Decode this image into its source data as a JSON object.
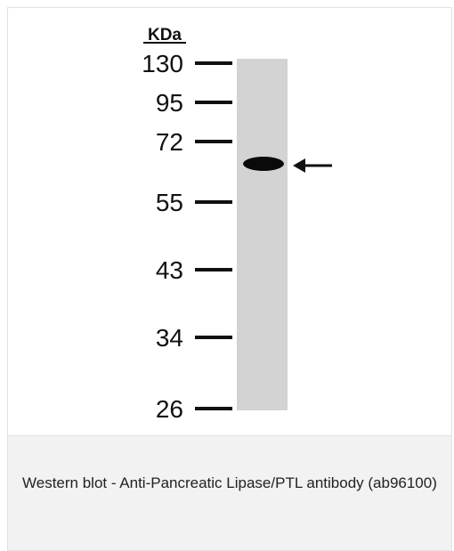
{
  "figure": {
    "unit": "KDa",
    "markers": [
      "130",
      "95",
      "72",
      "55",
      "43",
      "34",
      "26"
    ]
  },
  "caption": {
    "text": "Western blot - Anti-Pancreatic Lipase/PTL antibody (ab96100)"
  }
}
